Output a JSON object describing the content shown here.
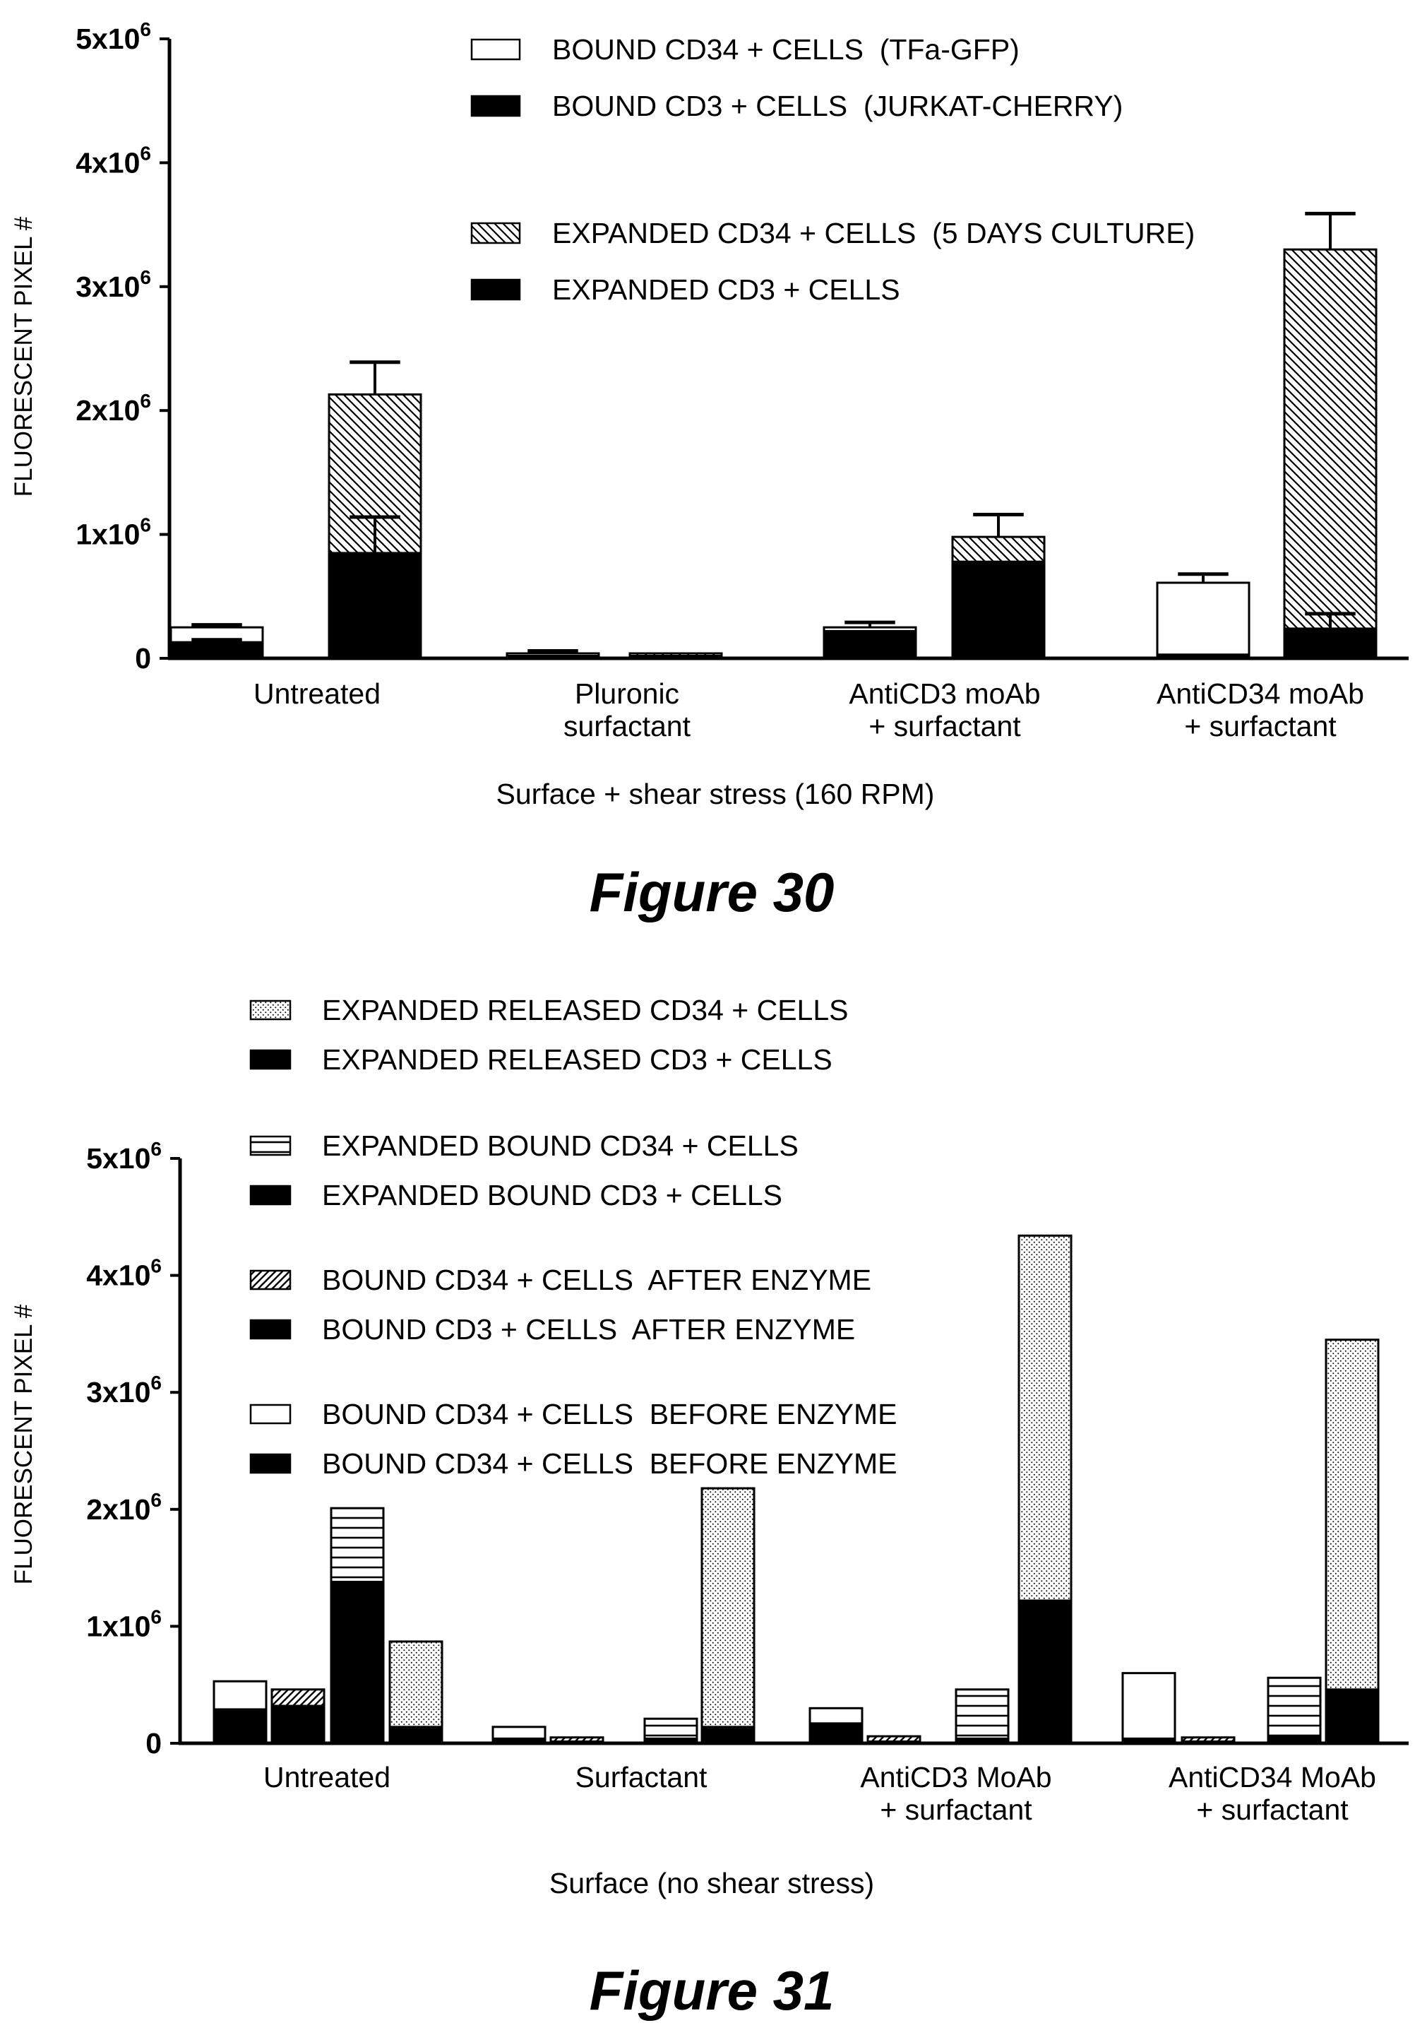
{
  "chart_data": [
    {
      "type": "bar",
      "figure_label": "Figure 30",
      "xlabel": "Surface + shear stress (160 RPM)",
      "ylabel": "FLUORESCENT PIXEL #",
      "ylim": [
        0,
        5000000
      ],
      "yticks": [
        {
          "value": 0,
          "base": "0",
          "exp": ""
        },
        {
          "value": 1000000,
          "base": "1x10",
          "exp": "6"
        },
        {
          "value": 2000000,
          "base": "2x10",
          "exp": "6"
        },
        {
          "value": 3000000,
          "base": "3x10",
          "exp": "6"
        },
        {
          "value": 4000000,
          "base": "4x10",
          "exp": "6"
        },
        {
          "value": 5000000,
          "base": "5x10",
          "exp": "6"
        }
      ],
      "categories": [
        {
          "lines": [
            "Untreated"
          ]
        },
        {
          "lines": [
            "Pluronic",
            "surfactant"
          ]
        },
        {
          "lines": [
            "AntiCD3 moAb",
            "+ surfactant"
          ]
        },
        {
          "lines": [
            "AntiCD34 moAb",
            "+ surfactant"
          ]
        }
      ],
      "legend": {
        "placement": "top-center",
        "entries": [
          {
            "label": "BOUND CD34 + CELLS  (TFa-GFP)",
            "pattern": "white"
          },
          {
            "label": "BOUND CD3 + CELLS  (JURKAT-CHERRY)",
            "pattern": "black"
          },
          {
            "label": "EXPANDED CD34 + CELLS  (5 DAYS CULTURE)",
            "pattern": "backslash"
          },
          {
            "label": "EXPANDED CD3 + CELLS",
            "pattern": "black"
          }
        ]
      },
      "bar_groups": [
        {
          "stack": [
            {
              "series": "BOUND CD3 + CELLS  (JURKAT-CHERRY)",
              "value": 130000,
              "pattern": "black"
            },
            {
              "series": "BOUND CD34 + CELLS  (TFa-GFP)",
              "value": 120000,
              "pattern": "white"
            }
          ],
          "error_total": 270000,
          "error_inner": 150000
        },
        {
          "stack": [
            {
              "series": "EXPANDED CD3 + CELLS",
              "value": 850000,
              "pattern": "black"
            },
            {
              "series": "EXPANDED CD34 + CELLS  (5 DAYS CULTURE)",
              "value": 1280000,
              "pattern": "backslash"
            }
          ],
          "error_total": 2390000,
          "error_inner": 1140000
        },
        {
          "stack": [
            {
              "series": "BOUND CD3 + CELLS  (JURKAT-CHERRY)",
              "value": 20000,
              "pattern": "black"
            },
            {
              "series": "BOUND CD34 + CELLS  (TFa-GFP)",
              "value": 20000,
              "pattern": "white"
            }
          ],
          "error_total": 60000
        },
        {
          "stack": [
            {
              "series": "EXPANDED CD3 + CELLS",
              "value": 20000,
              "pattern": "black"
            },
            {
              "series": "EXPANDED CD34 + CELLS  (5 DAYS CULTURE)",
              "value": 20000,
              "pattern": "backslash"
            }
          ]
        },
        {
          "stack": [
            {
              "series": "BOUND CD3 + CELLS  (JURKAT-CHERRY)",
              "value": 220000,
              "pattern": "black"
            },
            {
              "series": "BOUND CD34 + CELLS  (TFa-GFP)",
              "value": 30000,
              "pattern": "white"
            }
          ],
          "error_total": 290000
        },
        {
          "stack": [
            {
              "series": "EXPANDED CD3 + CELLS",
              "value": 780000,
              "pattern": "black"
            },
            {
              "series": "EXPANDED CD34 + CELLS  (5 DAYS CULTURE)",
              "value": 200000,
              "pattern": "backslash"
            }
          ],
          "error_total": 1160000
        },
        {
          "stack": [
            {
              "series": "BOUND CD3 + CELLS  (JURKAT-CHERRY)",
              "value": 30000,
              "pattern": "black"
            },
            {
              "series": "BOUND CD34 + CELLS  (TFa-GFP)",
              "value": 580000,
              "pattern": "white"
            }
          ],
          "error_total": 680000
        },
        {
          "stack": [
            {
              "series": "EXPANDED CD3 + CELLS",
              "value": 240000,
              "pattern": "black"
            },
            {
              "series": "EXPANDED CD34 + CELLS  (5 DAYS CULTURE)",
              "value": 3060000,
              "pattern": "backslash"
            }
          ],
          "error_total": 3590000,
          "error_inner": 360000
        }
      ]
    },
    {
      "type": "bar",
      "figure_label": "Figure 31",
      "xlabel": "Surface (no shear stress)",
      "ylabel": "FLUORESCENT PIXEL #",
      "ylim": [
        0,
        5000000
      ],
      "yticks": [
        {
          "value": 0,
          "base": "0",
          "exp": ""
        },
        {
          "value": 1000000,
          "base": "1x10",
          "exp": "6"
        },
        {
          "value": 2000000,
          "base": "2x10",
          "exp": "6"
        },
        {
          "value": 3000000,
          "base": "3x10",
          "exp": "6"
        },
        {
          "value": 4000000,
          "base": "4x10",
          "exp": "6"
        },
        {
          "value": 5000000,
          "base": "5x10",
          "exp": "6"
        }
      ],
      "categories": [
        {
          "lines": [
            "Untreated"
          ]
        },
        {
          "lines": [
            "Surfactant"
          ]
        },
        {
          "lines": [
            "AntiCD3 MoAb",
            "+ surfactant"
          ]
        },
        {
          "lines": [
            "AntiCD34 MoAb",
            "+ surfactant"
          ]
        }
      ],
      "legend": {
        "placement": "top-left",
        "entries": [
          {
            "label": "EXPANDED RELEASED CD34 + CELLS",
            "pattern": "dots"
          },
          {
            "label": "EXPANDED RELEASED CD3 + CELLS",
            "pattern": "black"
          },
          {
            "label": "EXPANDED BOUND CD34 + CELLS",
            "pattern": "hlines"
          },
          {
            "label": "EXPANDED BOUND CD3 + CELLS",
            "pattern": "black"
          },
          {
            "label": "BOUND CD34 + CELLS  AFTER ENZYME",
            "pattern": "slash"
          },
          {
            "label": "BOUND CD3 + CELLS  AFTER ENZYME",
            "pattern": "black"
          },
          {
            "label": "BOUND CD34 + CELLS  BEFORE ENZYME",
            "pattern": "white"
          },
          {
            "label": "BOUND CD34 + CELLS  BEFORE ENZYME ",
            "pattern": "black"
          }
        ]
      },
      "bar_groups": [
        {
          "stack": [
            {
              "series": "BOUND CD34 + CELLS  BEFORE ENZYME ",
              "value": 290000,
              "pattern": "black"
            },
            {
              "series": "BOUND CD34 + CELLS  BEFORE ENZYME",
              "value": 240000,
              "pattern": "white"
            }
          ]
        },
        {
          "stack": [
            {
              "series": "BOUND CD3 + CELLS  AFTER ENZYME",
              "value": 320000,
              "pattern": "black"
            },
            {
              "series": "BOUND CD34 + CELLS  AFTER ENZYME",
              "value": 140000,
              "pattern": "slash"
            }
          ]
        },
        {
          "stack": [
            {
              "series": "EXPANDED BOUND CD3 + CELLS",
              "value": 1380000,
              "pattern": "black"
            },
            {
              "series": "EXPANDED BOUND CD34 + CELLS",
              "value": 630000,
              "pattern": "hlines"
            }
          ]
        },
        {
          "stack": [
            {
              "series": "EXPANDED RELEASED CD3 + CELLS",
              "value": 140000,
              "pattern": "black"
            },
            {
              "series": "EXPANDED RELEASED CD34 + CELLS",
              "value": 730000,
              "pattern": "dots"
            }
          ]
        },
        {
          "stack": [
            {
              "series": "BOUND CD34 + CELLS  BEFORE ENZYME ",
              "value": 40000,
              "pattern": "black"
            },
            {
              "series": "BOUND CD34 + CELLS  BEFORE ENZYME",
              "value": 100000,
              "pattern": "white"
            }
          ]
        },
        {
          "stack": [
            {
              "series": "BOUND CD3 + CELLS  AFTER ENZYME",
              "value": 15000,
              "pattern": "black"
            },
            {
              "series": "BOUND CD34 + CELLS  AFTER ENZYME",
              "value": 35000,
              "pattern": "slash"
            }
          ]
        },
        {
          "stack": [
            {
              "series": "EXPANDED BOUND CD3 + CELLS",
              "value": 40000,
              "pattern": "black"
            },
            {
              "series": "EXPANDED BOUND CD34 + CELLS",
              "value": 170000,
              "pattern": "hlines"
            }
          ]
        },
        {
          "stack": [
            {
              "series": "EXPANDED RELEASED CD3 + CELLS",
              "value": 140000,
              "pattern": "black"
            },
            {
              "series": "EXPANDED RELEASED CD34 + CELLS",
              "value": 2040000,
              "pattern": "dots"
            }
          ]
        },
        {
          "stack": [
            {
              "series": "BOUND CD34 + CELLS  BEFORE ENZYME ",
              "value": 170000,
              "pattern": "black"
            },
            {
              "series": "BOUND CD34 + CELLS  BEFORE ENZYME",
              "value": 130000,
              "pattern": "white"
            }
          ]
        },
        {
          "stack": [
            {
              "series": "BOUND CD3 + CELLS  AFTER ENZYME",
              "value": 15000,
              "pattern": "black"
            },
            {
              "series": "BOUND CD34 + CELLS  AFTER ENZYME",
              "value": 45000,
              "pattern": "slash"
            }
          ]
        },
        {
          "stack": [
            {
              "series": "EXPANDED BOUND CD3 + CELLS",
              "value": 40000,
              "pattern": "black"
            },
            {
              "series": "EXPANDED BOUND CD34 + CELLS",
              "value": 420000,
              "pattern": "hlines"
            }
          ]
        },
        {
          "stack": [
            {
              "series": "EXPANDED RELEASED CD3 + CELLS",
              "value": 1220000,
              "pattern": "black"
            },
            {
              "series": "EXPANDED RELEASED CD34 + CELLS",
              "value": 3120000,
              "pattern": "dots"
            }
          ]
        },
        {
          "stack": [
            {
              "series": "BOUND CD34 + CELLS  BEFORE ENZYME ",
              "value": 40000,
              "pattern": "black"
            },
            {
              "series": "BOUND CD34 + CELLS  BEFORE ENZYME",
              "value": 560000,
              "pattern": "white"
            }
          ]
        },
        {
          "stack": [
            {
              "series": "BOUND CD3 + CELLS  AFTER ENZYME",
              "value": 15000,
              "pattern": "black"
            },
            {
              "series": "BOUND CD34 + CELLS  AFTER ENZYME",
              "value": 35000,
              "pattern": "slash"
            }
          ]
        },
        {
          "stack": [
            {
              "series": "EXPANDED BOUND CD3 + CELLS",
              "value": 60000,
              "pattern": "black"
            },
            {
              "series": "EXPANDED BOUND CD34 + CELLS",
              "value": 500000,
              "pattern": "hlines"
            }
          ]
        },
        {
          "stack": [
            {
              "series": "EXPANDED RELEASED CD3 + CELLS",
              "value": 460000,
              "pattern": "black"
            },
            {
              "series": "EXPANDED RELEASED CD34 + CELLS",
              "value": 2990000,
              "pattern": "dots"
            }
          ]
        }
      ]
    }
  ]
}
